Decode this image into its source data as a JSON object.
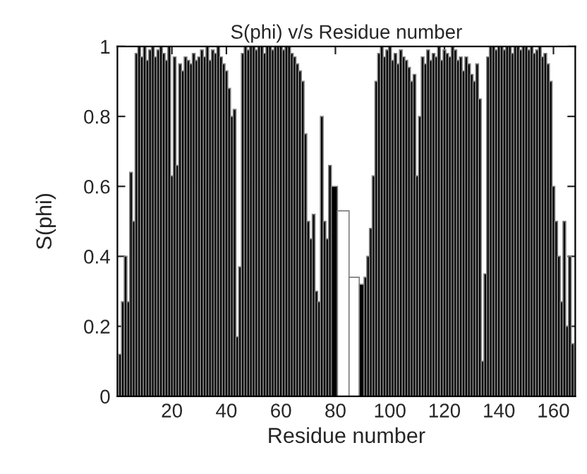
{
  "chart_data": {
    "type": "bar",
    "title": "S(phi) v/s Residue number",
    "xlabel": "Residue number",
    "ylabel": "S(phi)",
    "x": [
      1,
      2,
      3,
      4,
      5,
      6,
      7,
      8,
      9,
      10,
      11,
      12,
      13,
      14,
      15,
      16,
      17,
      18,
      19,
      20,
      21,
      22,
      23,
      24,
      25,
      26,
      27,
      28,
      29,
      30,
      31,
      32,
      33,
      34,
      35,
      36,
      37,
      38,
      39,
      40,
      41,
      42,
      43,
      44,
      45,
      46,
      47,
      48,
      49,
      50,
      51,
      52,
      53,
      54,
      55,
      56,
      57,
      58,
      59,
      60,
      61,
      62,
      63,
      64,
      65,
      66,
      67,
      68,
      69,
      70,
      71,
      72,
      73,
      74,
      75,
      76,
      77,
      78,
      79,
      82.5,
      87.5,
      90,
      91,
      92,
      93,
      94,
      95,
      96,
      97,
      98,
      99,
      100,
      101,
      102,
      103,
      104,
      105,
      106,
      107,
      108,
      109,
      110,
      111,
      112,
      113,
      114,
      115,
      116,
      117,
      118,
      119,
      120,
      121,
      122,
      123,
      124,
      125,
      126,
      127,
      128,
      129,
      130,
      131,
      132,
      133,
      134,
      135,
      136,
      137,
      138,
      139,
      140,
      141,
      142,
      143,
      144,
      145,
      146,
      147,
      148,
      149,
      150,
      151,
      152,
      153,
      154,
      155,
      156,
      157,
      158,
      159,
      160,
      161,
      162,
      163,
      164,
      165,
      166,
      167
    ],
    "values": [
      0.12,
      0.27,
      0.4,
      0.27,
      0.64,
      0.5,
      0.98,
      1,
      0.97,
      1,
      0.96,
      0.99,
      1,
      0.97,
      0.99,
      1,
      0.98,
      0.96,
      1,
      0.63,
      0.97,
      0.66,
      0.95,
      0.93,
      0.97,
      0.96,
      0.95,
      0.98,
      0.96,
      0.97,
      0.99,
      0.97,
      1,
      0.96,
      0.99,
      0.98,
      1,
      0.97,
      0.95,
      0.93,
      0.88,
      0.8,
      0.82,
      0.17,
      0.37,
      0.98,
      1,
      0.99,
      1,
      1,
      0.99,
      1,
      1,
      0.98,
      1,
      1,
      0.99,
      1,
      1,
      1,
      0.99,
      1,
      1,
      0.98,
      0.97,
      0.95,
      0.93,
      0.9,
      0.75,
      0.5,
      0.45,
      0.52,
      0.3,
      0.27,
      0.8,
      0.5,
      0.45,
      0.66,
      0.6,
      0.53,
      0.34,
      0.32,
      0.34,
      0.4,
      0.48,
      0.63,
      0.9,
      0.98,
      1,
      0.97,
      0.99,
      1,
      0.96,
      0.98,
      0.95,
      0.99,
      0.97,
      0.96,
      0.94,
      0.9,
      0.92,
      0.63,
      0.8,
      0.97,
      0.95,
      0.99,
      0.96,
      0.98,
      0.97,
      1,
      0.96,
      0.99,
      0.98,
      0.97,
      1,
      0.99,
      0.96,
      0.97,
      0.93,
      0.97,
      0.95,
      0.92,
      0.9,
      0.95,
      0.85,
      0.1,
      0.35,
      0.97,
      1,
      1,
      0.99,
      1,
      1,
      0.99,
      1,
      1,
      0.98,
      1,
      1,
      0.99,
      1,
      1,
      0.99,
      1,
      0.98,
      0.99,
      1,
      0.97,
      0.98,
      0.95,
      0.9,
      0.6,
      0.5,
      0.4,
      0.27,
      0.5,
      0.2,
      0.4,
      0.15
    ],
    "colors": [
      "#000000",
      "#000000",
      "#000000",
      "#000000",
      "#000000",
      "#000000",
      "#000000",
      "#000000",
      "#000000",
      "#000000",
      "#000000",
      "#000000",
      "#000000",
      "#000000",
      "#000000",
      "#000000",
      "#000000",
      "#000000",
      "#000000",
      "#000000",
      "#000000",
      "#000000",
      "#000000",
      "#000000",
      "#000000",
      "#000000",
      "#000000",
      "#000000",
      "#000000",
      "#000000",
      "#000000",
      "#000000",
      "#000000",
      "#000000",
      "#000000",
      "#000000",
      "#000000",
      "#000000",
      "#000000",
      "#000000",
      "#000000",
      "#000000",
      "#000000",
      "#000000",
      "#000000",
      "#000000",
      "#000000",
      "#000000",
      "#000000",
      "#000000",
      "#000000",
      "#000000",
      "#000000",
      "#000000",
      "#000000",
      "#000000",
      "#000000",
      "#000000",
      "#000000",
      "#000000",
      "#000000",
      "#000000",
      "#000000",
      "#000000",
      "#000000",
      "#000000",
      "#000000",
      "#000000",
      "#000000",
      "#000000",
      "#000000",
      "#000000",
      "#000000",
      "#000000",
      "#000000",
      "#000000",
      "#000000",
      "#000000",
      "#000000",
      "#ffffff",
      "#ffffff",
      "#000000",
      "#000000",
      "#000000",
      "#000000",
      "#000000",
      "#000000",
      "#000000",
      "#000000",
      "#000000",
      "#000000",
      "#000000",
      "#000000",
      "#000000",
      "#000000",
      "#000000",
      "#000000",
      "#000000",
      "#000000",
      "#000000",
      "#000000",
      "#000000",
      "#000000",
      "#000000",
      "#000000",
      "#000000",
      "#000000",
      "#000000",
      "#000000",
      "#000000",
      "#000000",
      "#000000",
      "#000000",
      "#000000",
      "#000000",
      "#000000",
      "#000000",
      "#000000",
      "#000000",
      "#000000",
      "#000000",
      "#000000",
      "#000000",
      "#000000",
      "#000000",
      "#000000",
      "#000000",
      "#000000",
      "#000000",
      "#000000",
      "#000000",
      "#000000",
      "#000000",
      "#000000",
      "#000000",
      "#000000",
      "#000000",
      "#000000",
      "#000000",
      "#000000",
      "#000000",
      "#000000",
      "#000000",
      "#000000",
      "#000000",
      "#000000",
      "#000000",
      "#000000",
      "#000000",
      "#000000",
      "#000000",
      "#000000",
      "#000000",
      "#000000",
      "#000000",
      "#000000",
      "#000000",
      "#000000",
      "#000000"
    ],
    "xlim": [
      0,
      168
    ],
    "xticks": [
      20,
      40,
      60,
      80,
      100,
      120,
      140,
      160
    ],
    "ylim": [
      0,
      1
    ],
    "yticks": [
      0,
      0.2,
      0.4,
      0.6,
      0.8,
      1
    ],
    "grid": false,
    "legend": false
  }
}
